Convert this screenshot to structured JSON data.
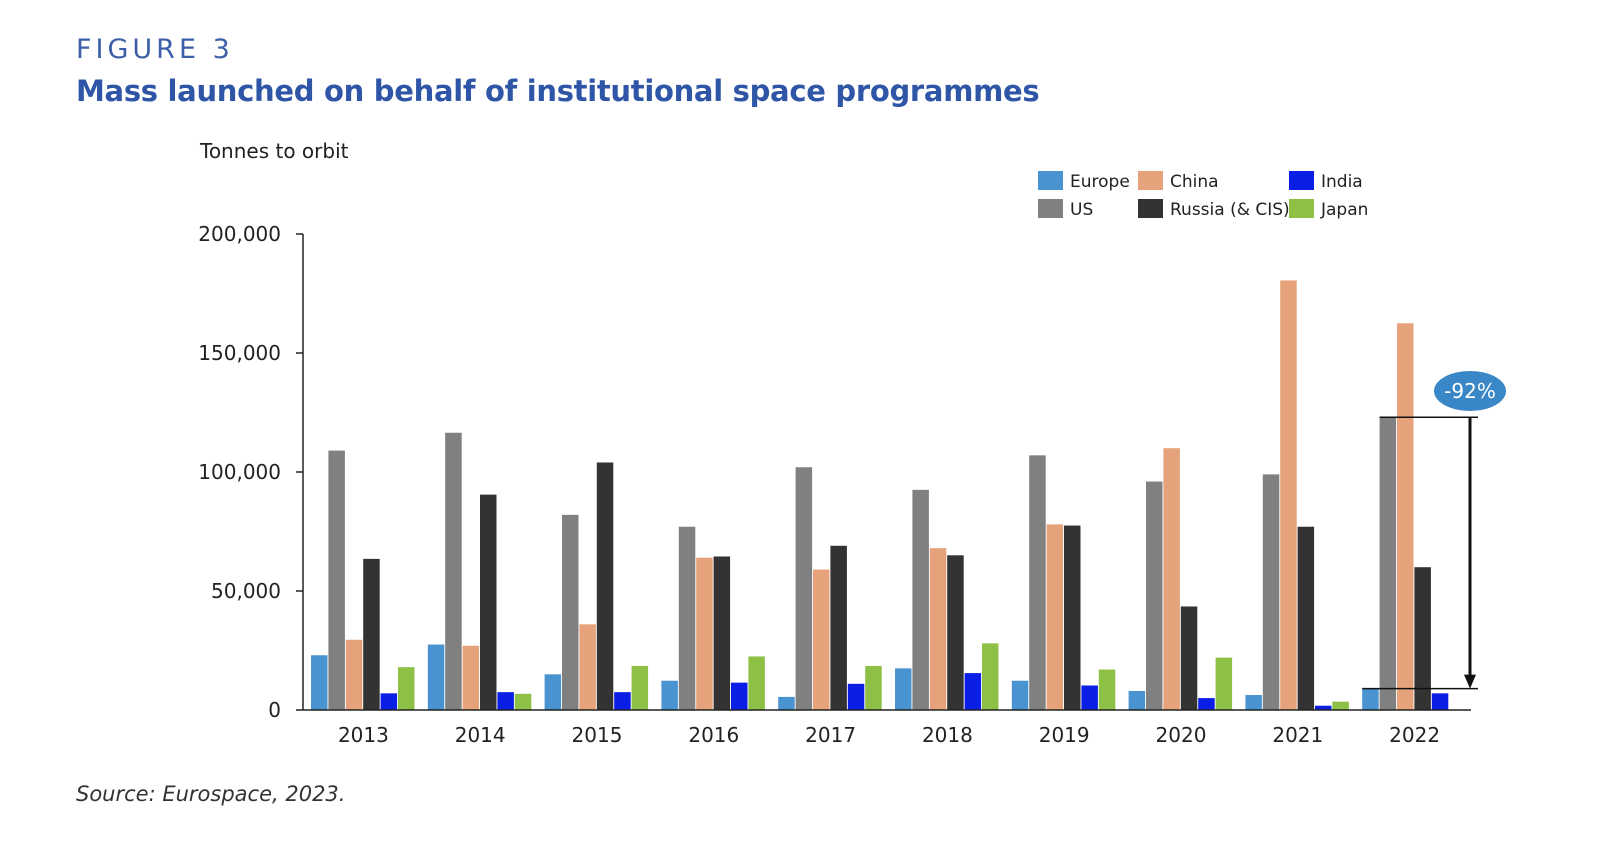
{
  "figure_label": "FIGURE 3",
  "title": "Mass launched on behalf of institutional space programmes",
  "source": "Source: Eurospace, 2023.",
  "chart_data": {
    "type": "bar",
    "ylabel": "Tonnes to orbit",
    "xlabel": "",
    "ylim": [
      0,
      200000
    ],
    "yticks": [
      0,
      50000,
      100000,
      150000,
      200000
    ],
    "ytick_labels": [
      "0",
      "50,000",
      "100,000",
      "150,000",
      "200,000"
    ],
    "categories": [
      "2013",
      "2014",
      "2015",
      "2016",
      "2017",
      "2018",
      "2019",
      "2020",
      "2021",
      "2022"
    ],
    "legend_position": "top-right",
    "grid": false,
    "series": [
      {
        "name": "Europe",
        "color": "#4a93d1",
        "values": [
          23000,
          27500,
          15000,
          12300,
          5500,
          17500,
          12300,
          8000,
          6300,
          9000
        ]
      },
      {
        "name": "US",
        "color": "#808080",
        "values": [
          109000,
          116500,
          82000,
          77000,
          102000,
          92500,
          107000,
          96000,
          99000,
          123000
        ]
      },
      {
        "name": "China",
        "color": "#e6a27a",
        "values": [
          29500,
          27000,
          36000,
          64000,
          59000,
          68000,
          78000,
          110000,
          180500,
          162500
        ]
      },
      {
        "name": "Russia (& CIS)",
        "color": "#333333",
        "values": [
          63500,
          90500,
          104000,
          64500,
          69000,
          65000,
          77500,
          43500,
          77000,
          60000
        ]
      },
      {
        "name": "India",
        "color": "#0a1ee6",
        "values": [
          7000,
          7500,
          7500,
          11500,
          11000,
          15500,
          10300,
          5000,
          1800,
          7000
        ]
      },
      {
        "name": "Japan",
        "color": "#8dc045",
        "values": [
          18000,
          6800,
          18500,
          22500,
          18500,
          28000,
          17000,
          22000,
          3500,
          null
        ]
      }
    ],
    "legend_layout": [
      [
        "Europe",
        "China",
        "India"
      ],
      [
        "US",
        "Russia (& CIS)",
        "Japan"
      ]
    ],
    "annotation": {
      "label": "-92%",
      "category": "2022",
      "from_value": 123000,
      "to_value": 9000,
      "bubble_color": "#3a87c8"
    }
  }
}
